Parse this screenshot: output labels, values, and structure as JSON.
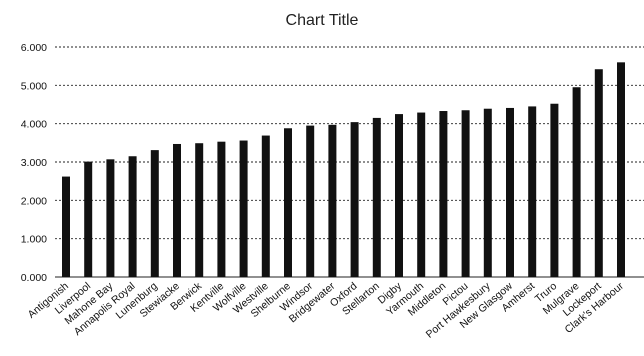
{
  "chart_data": {
    "type": "bar",
    "title": "Chart Title",
    "xlabel": "",
    "ylabel": "",
    "ylim": [
      0,
      6
    ],
    "yticks": [
      "0.000",
      "1.000",
      "2.000",
      "3.000",
      "4.000",
      "5.000",
      "6.000"
    ],
    "grid": true,
    "categories": [
      "Antigonish",
      "Liverpool",
      "Mahone Bay",
      "Annapolis Royal",
      "Lunenburg",
      "Stewiacke",
      "Berwick",
      "Kentville",
      "Wolfville",
      "Westville",
      "Shelburne",
      "Windsor",
      "Bridgewater",
      "Oxford",
      "Stellarton",
      "Digby",
      "Yarmouth",
      "Middleton",
      "Pictou",
      "Port Hawkesbury",
      "New Glasgow",
      "Amherst",
      "Truro",
      "Mulgrave",
      "Lockeport",
      "Clark's Harbour"
    ],
    "values": [
      2.62,
      3.01,
      3.07,
      3.15,
      3.31,
      3.47,
      3.49,
      3.53,
      3.56,
      3.69,
      3.88,
      3.95,
      3.97,
      4.04,
      4.15,
      4.25,
      4.29,
      4.33,
      4.35,
      4.39,
      4.41,
      4.45,
      4.52,
      4.95,
      5.42,
      5.6
    ],
    "colors": {
      "bar": "#111111",
      "grid": "#222222"
    }
  }
}
